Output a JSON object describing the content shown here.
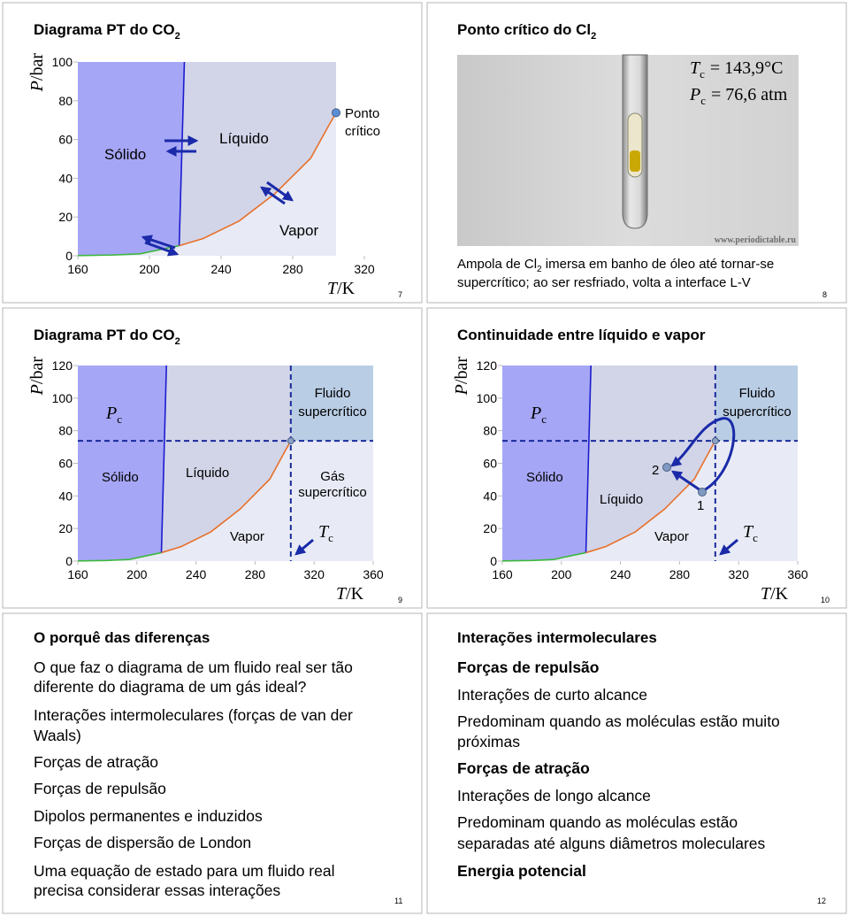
{
  "slides": [
    {
      "title": "Diagrama PT do CO",
      "title_sub": "2",
      "page": 7,
      "chart": {
        "xlabel_symbol": "T",
        "xlabel_unit": "/K",
        "ylabel_symbol": "P",
        "ylabel_unit": "/bar",
        "xlim": [
          160,
          320
        ],
        "ylim": [
          0,
          100
        ],
        "xticks": [
          160,
          200,
          240,
          280,
          320
        ],
        "yticks": [
          0,
          20,
          40,
          60,
          80,
          100
        ],
        "sublimation": {
          "x": [
            160,
            180,
            194.7,
            216.6
          ],
          "y": [
            0.1,
            0.4,
            1,
            5.2
          ]
        },
        "fusion": {
          "x": [
            216.6,
            219.5
          ],
          "y": [
            5.2,
            100
          ]
        },
        "vaporization": {
          "x": [
            216.6,
            230,
            250,
            270,
            290,
            300,
            304.2
          ],
          "y": [
            5.2,
            8.9,
            17.9,
            32.0,
            50.3,
            67.0,
            73.8
          ]
        },
        "critical_point": {
          "x": 304.2,
          "y": 73.8
        },
        "labels": {
          "solid": "Sólido",
          "liquid": "Líquido",
          "vapor": "Vapor",
          "critical_1": "Ponto",
          "critical_2": "crítico"
        }
      }
    },
    {
      "title": "Ponto crítico do Cl",
      "title_sub": "2",
      "page": 8,
      "photo": {
        "tc_symbol": "T",
        "tc_sub": "c",
        "tc_value": "= 143,9°C",
        "pc_symbol": "P",
        "pc_sub": "c",
        "pc_value": "= 76,6 atm",
        "watermark": "www.periodictable.ru"
      },
      "caption": {
        "line1_before": "Ampola de Cl",
        "line1_sub": "2",
        "line1_after": " imersa em banho de óleo até tornar-se",
        "line2": "supercrítico; ao ser resfriado, volta a interface L-V"
      }
    },
    {
      "title": "Diagrama PT do CO",
      "title_sub": "2",
      "page": 9,
      "chart": {
        "xlabel_symbol": "T",
        "xlabel_unit": "/K",
        "ylabel_symbol": "P",
        "ylabel_unit": "/bar",
        "xlim": [
          160,
          360
        ],
        "ylim": [
          0,
          120
        ],
        "xticks": [
          160,
          200,
          240,
          280,
          320,
          360
        ],
        "yticks": [
          0,
          20,
          40,
          60,
          80,
          100,
          120
        ],
        "sublimation": {
          "x": [
            160,
            180,
            194.7,
            216.6
          ],
          "y": [
            0.1,
            0.4,
            1,
            5.2
          ]
        },
        "fusion": {
          "x": [
            216.6,
            220
          ],
          "y": [
            5.2,
            120
          ]
        },
        "vaporization": {
          "x": [
            216.6,
            230,
            250,
            270,
            290,
            300,
            304.2
          ],
          "y": [
            5.2,
            8.9,
            17.9,
            32.0,
            50.3,
            67.0,
            73.8
          ]
        },
        "critical_point": {
          "x": 304.2,
          "y": 73.8
        },
        "labels": {
          "pc_symbol": "P",
          "pc_sub": "c",
          "fluid_1": "Fluido",
          "fluid_2": "supercrítico",
          "solid": "Sólido",
          "liquid": "Líquido",
          "gas_1": "Gás",
          "gas_2": "supercrítico",
          "vapor": "Vapor",
          "tc_symbol": "T",
          "tc_sub": "c"
        }
      }
    },
    {
      "title": "Continuidade entre líquido e vapor",
      "page": 10,
      "chart": {
        "xlabel_symbol": "T",
        "xlabel_unit": "/K",
        "ylabel_symbol": "P",
        "ylabel_unit": "/bar",
        "xlim": [
          160,
          360
        ],
        "ylim": [
          0,
          120
        ],
        "xticks": [
          160,
          200,
          240,
          280,
          320,
          360
        ],
        "yticks": [
          0,
          20,
          40,
          60,
          80,
          100,
          120
        ],
        "sublimation": {
          "x": [
            160,
            180,
            194.7,
            216.6
          ],
          "y": [
            0.1,
            0.4,
            1,
            5.2
          ]
        },
        "fusion": {
          "x": [
            216.6,
            220
          ],
          "y": [
            5.2,
            120
          ]
        },
        "vaporization": {
          "x": [
            216.6,
            230,
            250,
            270,
            290,
            300,
            304.2
          ],
          "y": [
            5.2,
            8.9,
            17.9,
            32.0,
            50.3,
            67.0,
            73.8
          ]
        },
        "critical_point": {
          "x": 304.2,
          "y": 73.8
        },
        "labels": {
          "pc_symbol": "P",
          "pc_sub": "c",
          "fluid_1": "Fluido",
          "fluid_2": "supercrítico",
          "solid": "Sólido",
          "liquid": "Líquido",
          "vapor": "Vapor",
          "tc_symbol": "T",
          "tc_sub": "c",
          "point_1": "1",
          "point_2": "2"
        }
      }
    },
    {
      "title": "O porquê das diferenças",
      "page": 11,
      "lines": [
        "O que faz o diagrama de um fluido real ser tão",
        "diferente do diagrama de um gás ideal?",
        "Interações intermoleculares (forças de van der",
        "Waals)",
        "Forças de atração",
        "Forças de repulsão",
        "Dipolos permanentes e induzidos",
        "Forças de dispersão de London",
        "Uma equação de estado para um fluido real",
        "precisa considerar essas interações"
      ]
    },
    {
      "title": "Interações intermoleculares",
      "page": 12,
      "lines": [
        "Forças de repulsão",
        "Interações de curto alcance",
        "Predominam quando as moléculas estão muito",
        "próximas",
        "Forças de atração",
        "Interações de longo alcance",
        "Predominam quando as moléculas estão",
        "separadas até alguns diâmetros moleculares",
        "Energia potencial"
      ]
    }
  ]
}
